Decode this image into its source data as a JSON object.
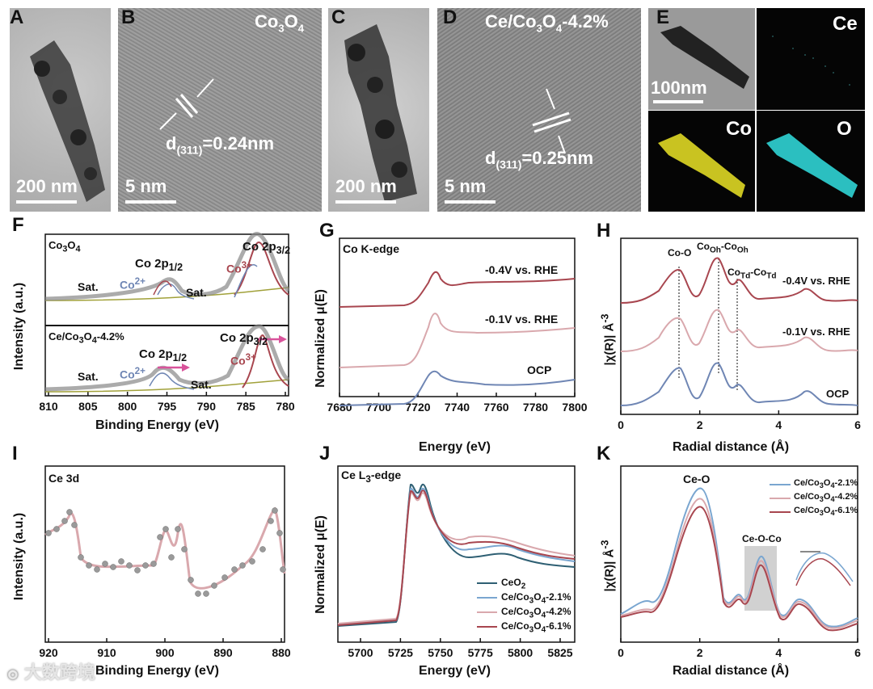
{
  "panels": {
    "A": {
      "label": "A",
      "scale": "200 nm"
    },
    "B": {
      "label": "B",
      "sample": "Co3O4",
      "d_spacing_prefix": "d",
      "d_spacing_sub": "(311)",
      "d_spacing_value": "=0.24nm",
      "scale": "5 nm"
    },
    "C": {
      "label": "C",
      "scale": "200 nm"
    },
    "D": {
      "label": "D",
      "sample": "Ce/Co3O4-4.2%",
      "d_spacing_prefix": "d",
      "d_spacing_sub": "(311)",
      "d_spacing_value": "=0.25nm",
      "scale": "5 nm"
    },
    "E": {
      "label": "E",
      "scale": "100nm",
      "maps": [
        "Ce",
        "Co",
        "O"
      ]
    },
    "F": {
      "label": "F",
      "ylabel": "Intensity (a.u.)",
      "xlabel": "Binding Energy (eV)",
      "xticks": [
        "810",
        "805",
        "800",
        "795",
        "790",
        "785",
        "780"
      ],
      "top": {
        "sample": "Co3O4",
        "co2p12": "Co 2p",
        "co2p12_sub": "1/2",
        "co2p32": "Co 2p",
        "co2p32_sub": "3/2",
        "sat1": "Sat.",
        "sat2": "Sat.",
        "co2": "Co",
        "co2_sup": "2+",
        "co3": "Co",
        "co3_sup": "3+"
      },
      "bottom": {
        "sample": "Ce/Co3O4-4.2%",
        "co2p12": "Co 2p",
        "co2p12_sub": "1/2",
        "co2p32": "Co 2p",
        "co2p32_sub": "3/2",
        "sat1": "Sat.",
        "sat2": "Sat.",
        "co2": "Co",
        "co2_sup": "2+",
        "co3": "Co",
        "co3_sup": "3+"
      }
    },
    "G": {
      "label": "G",
      "title": "Co K-edge",
      "ylabel": "Normalized μ(E)",
      "xlabel": "Energy (eV)",
      "xticks": [
        "7680",
        "7700",
        "7720",
        "7740",
        "7760",
        "7780",
        "7800"
      ],
      "curves": [
        "-0.4V vs. RHE",
        "-0.1V vs. RHE",
        "OCP"
      ]
    },
    "H": {
      "label": "H",
      "ylabel": "|χ(R)| Å",
      "ylabel_sup": "-3",
      "xlabel": "Radial distance (Å)",
      "xticks": [
        "0",
        "2",
        "4",
        "6"
      ],
      "peaks": {
        "coo": "Co-O",
        "cooh": "Co",
        "cooh_sub": "Oh",
        "cooh2": "-Co",
        "cooh2_sub": "Oh",
        "cotd": "Co",
        "cotd_sub": "Td",
        "cotd2": "-Co",
        "cotd2_sub": "Td"
      },
      "curves": [
        "-0.4V vs. RHE",
        "-0.1V vs. RHE",
        "OCP"
      ]
    },
    "I": {
      "label": "I",
      "title": "Ce 3d",
      "ylabel": "Intensity (a.u.)",
      "xlabel": "Binding Energy (eV)",
      "xticks": [
        "920",
        "910",
        "900",
        "890",
        "880"
      ]
    },
    "J": {
      "label": "J",
      "title": "Ce L",
      "title_sub": "3",
      "title_suffix": "-edge",
      "ylabel": "Normalized μ(E)",
      "xlabel": "Energy (eV)",
      "xticks": [
        "5700",
        "5725",
        "5750",
        "5775",
        "5800",
        "5825"
      ],
      "legend": [
        "CeO2",
        "Ce/Co3O4-2.1%",
        "Ce/Co3O4-4.2%",
        "Ce/Co3O4-6.1%"
      ]
    },
    "K": {
      "label": "K",
      "ylabel": "|χ(R)| Å",
      "ylabel_sup": "-3",
      "xlabel": "Radial distance (Å)",
      "xticks": [
        "0",
        "2",
        "4",
        "6"
      ],
      "peaks": {
        "ceo": "Ce-O",
        "ceoco": "Ce-O-Co"
      },
      "legend": [
        "Ce/Co3O4-2.1%",
        "Ce/Co3O4-4.2%",
        "Ce/Co3O4-6.1%"
      ]
    }
  },
  "watermark": "大数跨境",
  "colors": {
    "dark_red": "#a8464f",
    "pink": "#d9a8ad",
    "blue_gray": "#6f86b4",
    "teal": "#2e5f73",
    "light_blue": "#7aa6d0",
    "gray_fill": "#bdbdbd"
  }
}
